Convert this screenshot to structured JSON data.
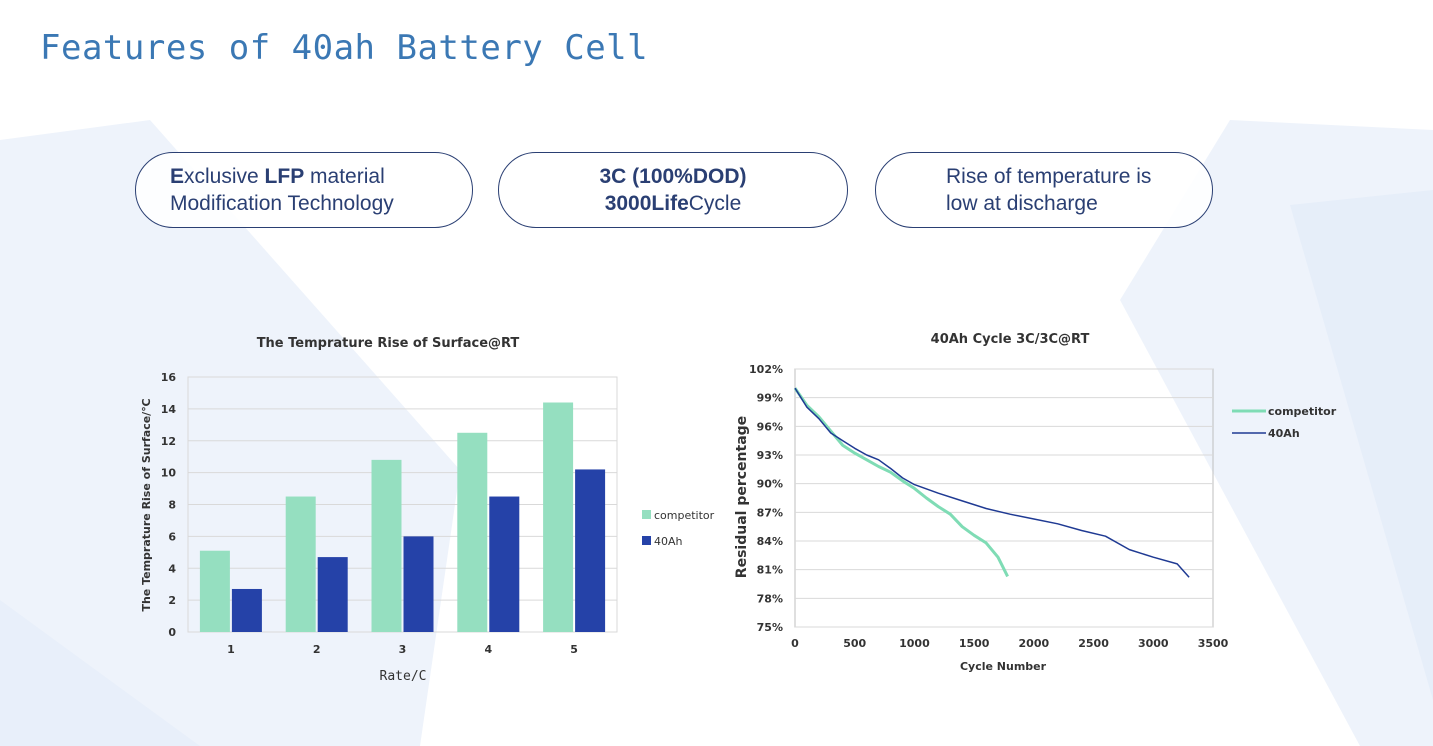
{
  "page": {
    "title": "Features of 40ah Battery Cell"
  },
  "features": [
    {
      "bold_lead": "E",
      "text_a": "xclusive ",
      "bold_b": "LFP",
      "text_b": " material",
      "line2": "Modification Technology"
    },
    {
      "line1": "3C  (100%DOD)",
      "bold_lead": "3000Life",
      "text_after": "Cycle"
    },
    {
      "line1": "Rise of temperature is",
      "line2": "low at discharge"
    }
  ],
  "colors": {
    "competitor": "#95dfc0",
    "ah40": "#2542a8",
    "ah40_line": "#1f3a93",
    "competitor_line": "#7fdcb5",
    "title": "#3b78b4"
  },
  "chart_data": [
    {
      "type": "bar",
      "title": "The Temprature Rise of Surface@RT",
      "xlabel": "Rate/C",
      "ylabel": "The Temprature Rise of Surface/℃",
      "categories": [
        "1",
        "2",
        "3",
        "4",
        "5"
      ],
      "ylim": [
        0,
        16
      ],
      "yticks": [
        "0",
        "2",
        "4",
        "6",
        "8",
        "10",
        "12",
        "14",
        "16"
      ],
      "grid": true,
      "legend_position": "right",
      "series": [
        {
          "name": "competitor",
          "values": [
            5.1,
            8.5,
            10.8,
            12.5,
            14.4
          ]
        },
        {
          "name": "40Ah",
          "values": [
            2.7,
            4.7,
            6.0,
            8.5,
            10.2
          ]
        }
      ]
    },
    {
      "type": "line",
      "title": "40Ah Cycle 3C/3C@RT",
      "xlabel": "Cycle Number",
      "ylabel": "Residual percentage",
      "xlim": [
        0,
        3500
      ],
      "ylim": [
        75,
        102
      ],
      "xticks": [
        "0",
        "500",
        "1000",
        "1500",
        "2000",
        "2500",
        "3000",
        "3500"
      ],
      "yticks": [
        "75%",
        "78%",
        "81%",
        "84%",
        "87%",
        "90%",
        "93%",
        "96%",
        "99%",
        "102%"
      ],
      "grid": true,
      "legend_position": "right",
      "series": [
        {
          "name": "competitor",
          "x": [
            0,
            100,
            200,
            300,
            400,
            500,
            600,
            700,
            800,
            900,
            1000,
            1100,
            1200,
            1300,
            1400,
            1500,
            1600,
            1700,
            1780
          ],
          "y": [
            100,
            98.2,
            97,
            95.5,
            94,
            93.2,
            92.5,
            91.8,
            91.2,
            90.3,
            89.5,
            88.5,
            87.6,
            86.8,
            85.5,
            84.6,
            83.8,
            82.3,
            80.3
          ]
        },
        {
          "name": "40Ah",
          "x": [
            0,
            100,
            200,
            300,
            400,
            500,
            600,
            700,
            800,
            900,
            1000,
            1200,
            1400,
            1600,
            1800,
            2000,
            2200,
            2400,
            2600,
            2800,
            3000,
            3200,
            3300
          ],
          "y": [
            100,
            98,
            96.8,
            95.3,
            94.5,
            93.7,
            93,
            92.5,
            91.6,
            90.6,
            89.9,
            89,
            88.2,
            87.4,
            86.8,
            86.3,
            85.8,
            85.1,
            84.5,
            83.1,
            82.3,
            81.6,
            80.2
          ]
        }
      ]
    }
  ]
}
